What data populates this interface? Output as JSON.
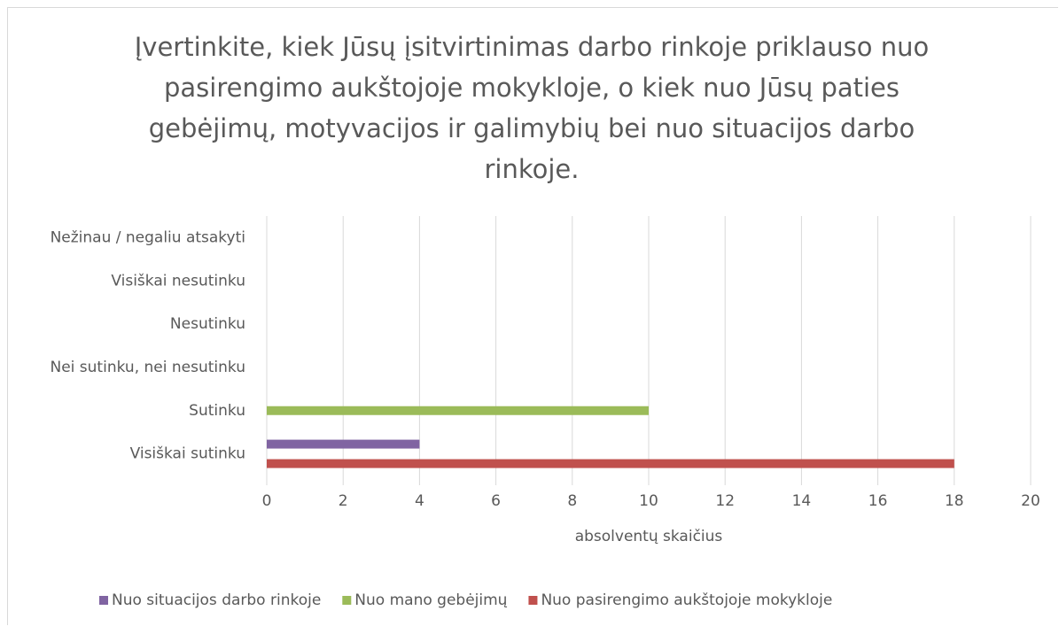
{
  "chart_data": {
    "type": "bar",
    "orientation": "horizontal",
    "title": "Įvertinkite, kiek Jūsų įsitvirtinimas darbo rinkoje priklauso nuo pasirengimo aukštojoje mokykloje, o kiek nuo Jūsų paties gebėjimų, motyvacijos ir galimybių bei nuo situacijos darbo rinkoje.",
    "categories": [
      "Visiškai sutinku",
      "Sutinku",
      "Nei sutinku, nei nesutinku",
      "Nesutinku",
      "Visiškai nesutinku",
      "Nežinau / negaliu atsakyti"
    ],
    "series": [
      {
        "name": "Nuo  situacijos darbo rinkoje",
        "color": "#8064a2",
        "values": [
          4,
          0,
          0,
          0,
          0,
          0
        ]
      },
      {
        "name": "Nuo mano gebėjimų",
        "color": "#9bbb59",
        "values": [
          0,
          10,
          0,
          0,
          0,
          0
        ]
      },
      {
        "name": "Nuo pasirengimo aukštojoje mokykloje",
        "color": "#c0504d",
        "values": [
          18,
          0,
          0,
          0,
          0,
          0
        ]
      }
    ],
    "xlabel": "absolventų skaičius",
    "xlim": [
      0,
      20
    ],
    "xticks": [
      0,
      2,
      4,
      6,
      8,
      10,
      12,
      14,
      16,
      18,
      20
    ],
    "grid": true,
    "legend": "bottom"
  }
}
